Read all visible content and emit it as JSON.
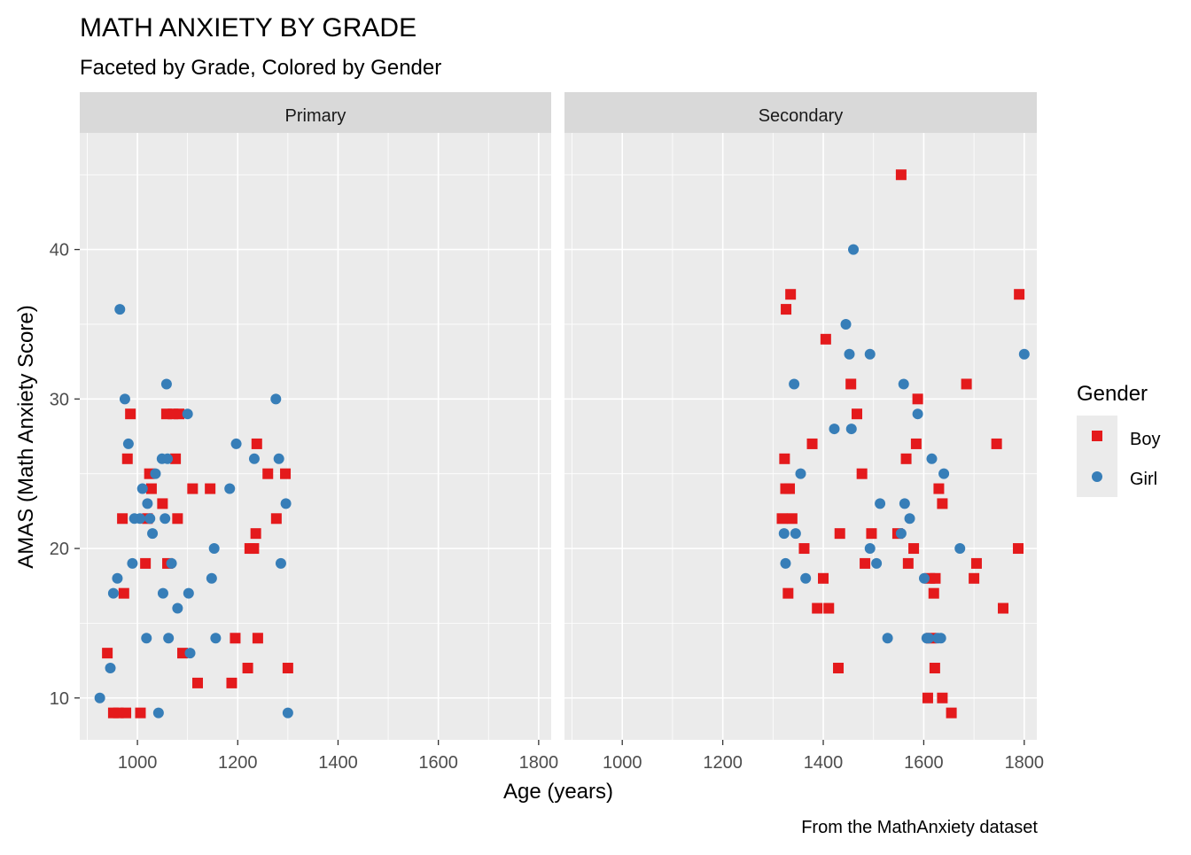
{
  "title": "MATH ANXIETY BY GRADE",
  "subtitle": "Faceted by Grade, Colored by Gender",
  "caption": "From the MathAnxiety dataset",
  "colors": {
    "Boy": "#E41A1C",
    "Girl": "#377EB8"
  },
  "chart_data": {
    "type": "scatter",
    "xlabel": "Age (years)",
    "ylabel": "AMAS (Math Anxiety Score)",
    "xlim": [
      885,
      1825
    ],
    "ylim": [
      7.2,
      47.8
    ],
    "x_ticks": [
      1000,
      1200,
      1400,
      1600,
      1800
    ],
    "y_ticks": [
      10,
      20,
      30,
      40
    ],
    "grid": true,
    "legend": {
      "title": "Gender",
      "position": "right",
      "entries": [
        {
          "label": "Boy",
          "shape": "square"
        },
        {
          "label": "Girl",
          "shape": "circle"
        }
      ]
    },
    "facets": [
      {
        "name": "Primary",
        "series": [
          {
            "name": "Boy",
            "points": [
              [
                940,
                13
              ],
              [
                952,
                9
              ],
              [
                962,
                9
              ],
              [
                970,
                22
              ],
              [
                973,
                17
              ],
              [
                977,
                9
              ],
              [
                980,
                26
              ],
              [
                986,
                29
              ],
              [
                1006,
                9
              ],
              [
                1016,
                19
              ],
              [
                1020,
                22
              ],
              [
                1024,
                25
              ],
              [
                1028,
                24
              ],
              [
                1050,
                23
              ],
              [
                1058,
                29
              ],
              [
                1060,
                19
              ],
              [
                1071,
                29
              ],
              [
                1076,
                26
              ],
              [
                1080,
                22
              ],
              [
                1083,
                29
              ],
              [
                1090,
                13
              ],
              [
                1110,
                24
              ],
              [
                1120,
                11
              ],
              [
                1145,
                24
              ],
              [
                1188,
                11
              ],
              [
                1195,
                14
              ],
              [
                1220,
                12
              ],
              [
                1224,
                20
              ],
              [
                1232,
                20
              ],
              [
                1236,
                21
              ],
              [
                1238,
                27
              ],
              [
                1240,
                14
              ],
              [
                1260,
                25
              ],
              [
                1277,
                22
              ],
              [
                1295,
                25
              ],
              [
                1300,
                12
              ]
            ]
          },
          {
            "name": "Girl",
            "points": [
              [
                925,
                10
              ],
              [
                946,
                12
              ],
              [
                952,
                17
              ],
              [
                960,
                18
              ],
              [
                965,
                36
              ],
              [
                975,
                30
              ],
              [
                982,
                27
              ],
              [
                990,
                19
              ],
              [
                994,
                22
              ],
              [
                1005,
                22
              ],
              [
                1010,
                24
              ],
              [
                1018,
                14
              ],
              [
                1020,
                23
              ],
              [
                1025,
                22
              ],
              [
                1030,
                21
              ],
              [
                1036,
                25
              ],
              [
                1042,
                9
              ],
              [
                1049,
                26
              ],
              [
                1051,
                17
              ],
              [
                1055,
                22
              ],
              [
                1058,
                31
              ],
              [
                1060,
                26
              ],
              [
                1062,
                14
              ],
              [
                1068,
                19
              ],
              [
                1080,
                16
              ],
              [
                1100,
                29
              ],
              [
                1102,
                17
              ],
              [
                1105,
                13
              ],
              [
                1148,
                18
              ],
              [
                1153,
                20
              ],
              [
                1156,
                14
              ],
              [
                1184,
                24
              ],
              [
                1197,
                27
              ],
              [
                1233,
                26
              ],
              [
                1276,
                30
              ],
              [
                1282,
                26
              ],
              [
                1286,
                19
              ],
              [
                1296,
                23
              ],
              [
                1300,
                9
              ]
            ]
          }
        ]
      },
      {
        "name": "Secondary",
        "series": [
          {
            "name": "Boy",
            "points": [
              [
                1318,
                22
              ],
              [
                1323,
                26
              ],
              [
                1325,
                24
              ],
              [
                1326,
                36
              ],
              [
                1330,
                17
              ],
              [
                1333,
                24
              ],
              [
                1335,
                37
              ],
              [
                1338,
                22
              ],
              [
                1362,
                20
              ],
              [
                1378,
                27
              ],
              [
                1388,
                16
              ],
              [
                1400,
                18
              ],
              [
                1405,
                34
              ],
              [
                1411,
                16
              ],
              [
                1430,
                12
              ],
              [
                1433,
                21
              ],
              [
                1455,
                31
              ],
              [
                1467,
                29
              ],
              [
                1477,
                25
              ],
              [
                1483,
                19
              ],
              [
                1496,
                21
              ],
              [
                1548,
                21
              ],
              [
                1555,
                45
              ],
              [
                1565,
                26
              ],
              [
                1569,
                19
              ],
              [
                1580,
                20
              ],
              [
                1585,
                27
              ],
              [
                1588,
                30
              ],
              [
                1608,
                10
              ],
              [
                1612,
                18
              ],
              [
                1615,
                14
              ],
              [
                1620,
                17
              ],
              [
                1622,
                12
              ],
              [
                1623,
                18
              ],
              [
                1630,
                24
              ],
              [
                1637,
                23
              ],
              [
                1637,
                10
              ],
              [
                1655,
                9
              ],
              [
                1685,
                31
              ],
              [
                1700,
                18
              ],
              [
                1705,
                19
              ],
              [
                1745,
                27
              ],
              [
                1758,
                16
              ],
              [
                1788,
                20
              ],
              [
                1790,
                37
              ]
            ]
          },
          {
            "name": "Girl",
            "points": [
              [
                1322,
                21
              ],
              [
                1325,
                19
              ],
              [
                1342,
                31
              ],
              [
                1345,
                21
              ],
              [
                1355,
                25
              ],
              [
                1365,
                18
              ],
              [
                1422,
                28
              ],
              [
                1445,
                35
              ],
              [
                1452,
                33
              ],
              [
                1456,
                28
              ],
              [
                1460,
                40
              ],
              [
                1493,
                33
              ],
              [
                1493,
                20
              ],
              [
                1506,
                19
              ],
              [
                1513,
                23
              ],
              [
                1528,
                14
              ],
              [
                1555,
                21
              ],
              [
                1560,
                31
              ],
              [
                1562,
                23
              ],
              [
                1572,
                22
              ],
              [
                1588,
                29
              ],
              [
                1601,
                18
              ],
              [
                1606,
                14
              ],
              [
                1610,
                14
              ],
              [
                1616,
                26
              ],
              [
                1628,
                14
              ],
              [
                1634,
                14
              ],
              [
                1640,
                25
              ],
              [
                1672,
                20
              ],
              [
                1800,
                33
              ]
            ]
          }
        ]
      }
    ]
  }
}
